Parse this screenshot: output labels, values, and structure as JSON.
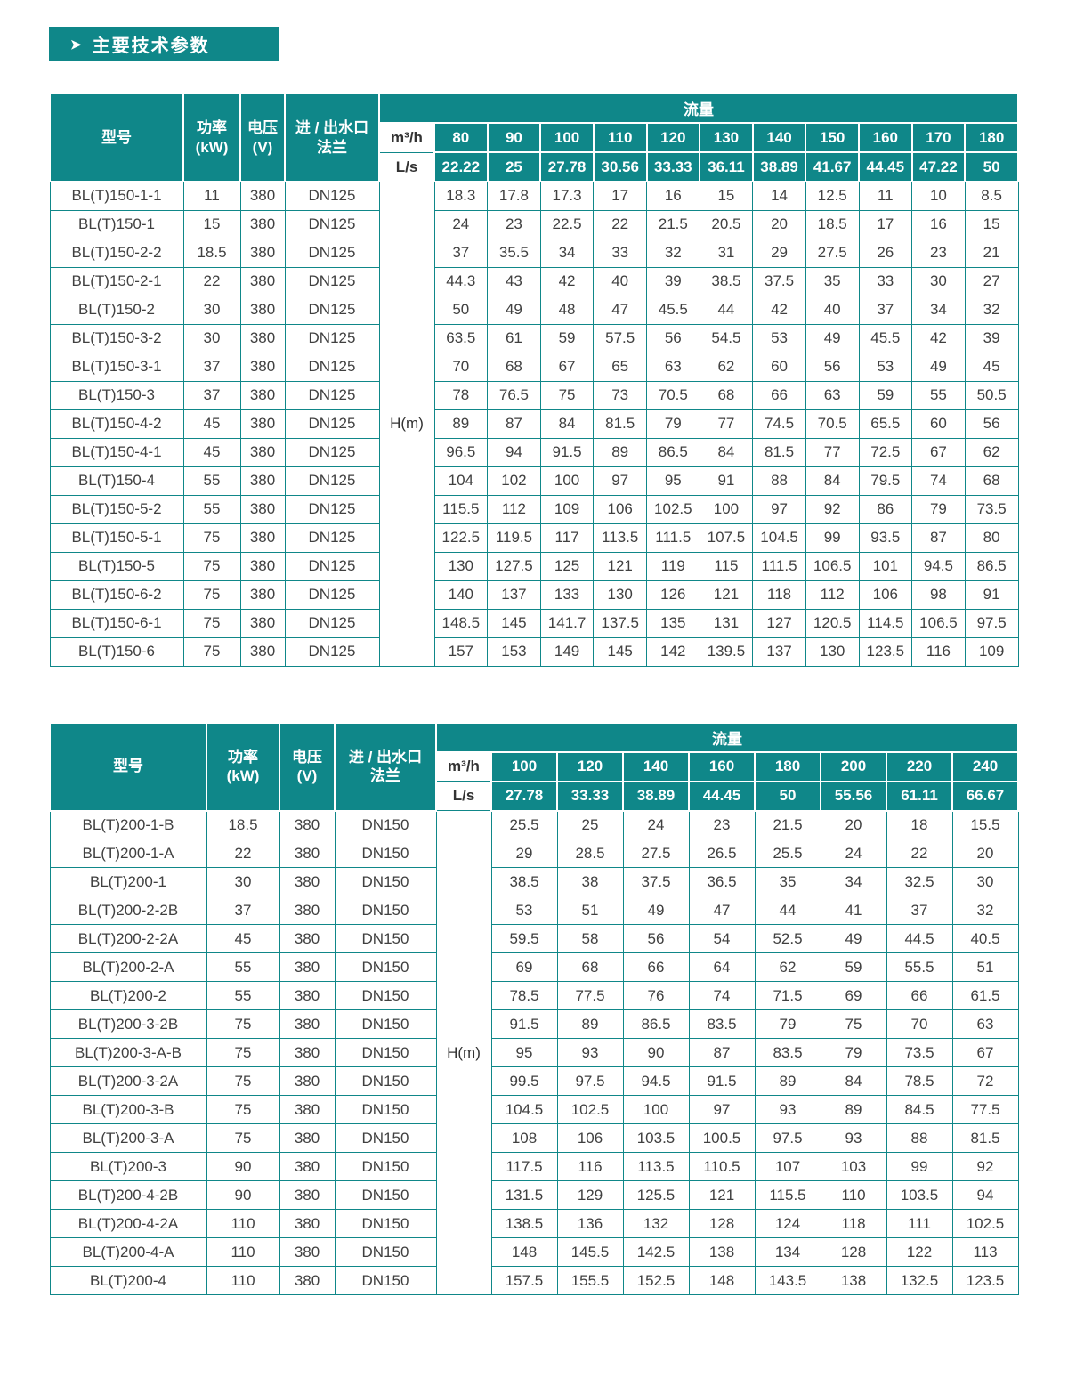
{
  "title": "主要技术参数",
  "title_arrow": "➤",
  "colors": {
    "teal": "#0f8789",
    "header_text": "#ffffff",
    "body_text": "#404040"
  },
  "tables": [
    {
      "series": "BL(T)150",
      "headers": {
        "model": "型号",
        "power": "功率\n(kW)",
        "voltage": "电压\n(V)",
        "flange": "进 / 出水口\n法兰",
        "flow": "流量",
        "unit_m3h": "m³/h",
        "unit_ls": "L/s",
        "head_label": "H(m)"
      },
      "flow_m3h": [
        "80",
        "90",
        "100",
        "110",
        "120",
        "130",
        "140",
        "150",
        "160",
        "170",
        "180"
      ],
      "flow_ls": [
        "22.22",
        "25",
        "27.78",
        "30.56",
        "33.33",
        "36.11",
        "38.89",
        "41.67",
        "44.45",
        "47.22",
        "50"
      ],
      "rows": [
        {
          "model": "BL(T)150-1-1",
          "power": "11",
          "voltage": "380",
          "flange": "DN125",
          "values": [
            "18.3",
            "17.8",
            "17.3",
            "17",
            "16",
            "15",
            "14",
            "12.5",
            "11",
            "10",
            "8.5"
          ]
        },
        {
          "model": "BL(T)150-1",
          "power": "15",
          "voltage": "380",
          "flange": "DN125",
          "values": [
            "24",
            "23",
            "22.5",
            "22",
            "21.5",
            "20.5",
            "20",
            "18.5",
            "17",
            "16",
            "15"
          ]
        },
        {
          "model": "BL(T)150-2-2",
          "power": "18.5",
          "voltage": "380",
          "flange": "DN125",
          "values": [
            "37",
            "35.5",
            "34",
            "33",
            "32",
            "31",
            "29",
            "27.5",
            "26",
            "23",
            "21"
          ]
        },
        {
          "model": "BL(T)150-2-1",
          "power": "22",
          "voltage": "380",
          "flange": "DN125",
          "values": [
            "44.3",
            "43",
            "42",
            "40",
            "39",
            "38.5",
            "37.5",
            "35",
            "33",
            "30",
            "27"
          ]
        },
        {
          "model": "BL(T)150-2",
          "power": "30",
          "voltage": "380",
          "flange": "DN125",
          "values": [
            "50",
            "49",
            "48",
            "47",
            "45.5",
            "44",
            "42",
            "40",
            "37",
            "34",
            "32"
          ]
        },
        {
          "model": "BL(T)150-3-2",
          "power": "30",
          "voltage": "380",
          "flange": "DN125",
          "values": [
            "63.5",
            "61",
            "59",
            "57.5",
            "56",
            "54.5",
            "53",
            "49",
            "45.5",
            "42",
            "39"
          ]
        },
        {
          "model": "BL(T)150-3-1",
          "power": "37",
          "voltage": "380",
          "flange": "DN125",
          "values": [
            "70",
            "68",
            "67",
            "65",
            "63",
            "62",
            "60",
            "56",
            "53",
            "49",
            "45"
          ]
        },
        {
          "model": "BL(T)150-3",
          "power": "37",
          "voltage": "380",
          "flange": "DN125",
          "values": [
            "78",
            "76.5",
            "75",
            "73",
            "70.5",
            "68",
            "66",
            "63",
            "59",
            "55",
            "50.5"
          ]
        },
        {
          "model": "BL(T)150-4-2",
          "power": "45",
          "voltage": "380",
          "flange": "DN125",
          "values": [
            "89",
            "87",
            "84",
            "81.5",
            "79",
            "77",
            "74.5",
            "70.5",
            "65.5",
            "60",
            "56"
          ]
        },
        {
          "model": "BL(T)150-4-1",
          "power": "45",
          "voltage": "380",
          "flange": "DN125",
          "values": [
            "96.5",
            "94",
            "91.5",
            "89",
            "86.5",
            "84",
            "81.5",
            "77",
            "72.5",
            "67",
            "62"
          ]
        },
        {
          "model": "BL(T)150-4",
          "power": "55",
          "voltage": "380",
          "flange": "DN125",
          "values": [
            "104",
            "102",
            "100",
            "97",
            "95",
            "91",
            "88",
            "84",
            "79.5",
            "74",
            "68"
          ]
        },
        {
          "model": "BL(T)150-5-2",
          "power": "55",
          "voltage": "380",
          "flange": "DN125",
          "values": [
            "115.5",
            "112",
            "109",
            "106",
            "102.5",
            "100",
            "97",
            "92",
            "86",
            "79",
            "73.5"
          ]
        },
        {
          "model": "BL(T)150-5-1",
          "power": "75",
          "voltage": "380",
          "flange": "DN125",
          "values": [
            "122.5",
            "119.5",
            "117",
            "113.5",
            "111.5",
            "107.5",
            "104.5",
            "99",
            "93.5",
            "87",
            "80"
          ]
        },
        {
          "model": "BL(T)150-5",
          "power": "75",
          "voltage": "380",
          "flange": "DN125",
          "values": [
            "130",
            "127.5",
            "125",
            "121",
            "119",
            "115",
            "111.5",
            "106.5",
            "101",
            "94.5",
            "86.5"
          ]
        },
        {
          "model": "BL(T)150-6-2",
          "power": "75",
          "voltage": "380",
          "flange": "DN125",
          "values": [
            "140",
            "137",
            "133",
            "130",
            "126",
            "121",
            "118",
            "112",
            "106",
            "98",
            "91"
          ]
        },
        {
          "model": "BL(T)150-6-1",
          "power": "75",
          "voltage": "380",
          "flange": "DN125",
          "values": [
            "148.5",
            "145",
            "141.7",
            "137.5",
            "135",
            "131",
            "127",
            "120.5",
            "114.5",
            "106.5",
            "97.5"
          ]
        },
        {
          "model": "BL(T)150-6",
          "power": "75",
          "voltage": "380",
          "flange": "DN125",
          "values": [
            "157",
            "153",
            "149",
            "145",
            "142",
            "139.5",
            "137",
            "130",
            "123.5",
            "116",
            "109"
          ]
        }
      ]
    },
    {
      "series": "BL(T)200",
      "headers": {
        "model": "型号",
        "power": "功率\n(kW)",
        "voltage": "电压\n(V)",
        "flange": "进 / 出水口\n法兰",
        "flow": "流量",
        "unit_m3h": "m³/h",
        "unit_ls": "L/s",
        "head_label": "H(m)"
      },
      "flow_m3h": [
        "100",
        "120",
        "140",
        "160",
        "180",
        "200",
        "220",
        "240"
      ],
      "flow_ls": [
        "27.78",
        "33.33",
        "38.89",
        "44.45",
        "50",
        "55.56",
        "61.11",
        "66.67"
      ],
      "rows": [
        {
          "model": "BL(T)200-1-B",
          "power": "18.5",
          "voltage": "380",
          "flange": "DN150",
          "values": [
            "25.5",
            "25",
            "24",
            "23",
            "21.5",
            "20",
            "18",
            "15.5"
          ]
        },
        {
          "model": "BL(T)200-1-A",
          "power": "22",
          "voltage": "380",
          "flange": "DN150",
          "values": [
            "29",
            "28.5",
            "27.5",
            "26.5",
            "25.5",
            "24",
            "22",
            "20"
          ]
        },
        {
          "model": "BL(T)200-1",
          "power": "30",
          "voltage": "380",
          "flange": "DN150",
          "values": [
            "38.5",
            "38",
            "37.5",
            "36.5",
            "35",
            "34",
            "32.5",
            "30"
          ]
        },
        {
          "model": "BL(T)200-2-2B",
          "power": "37",
          "voltage": "380",
          "flange": "DN150",
          "values": [
            "53",
            "51",
            "49",
            "47",
            "44",
            "41",
            "37",
            "32"
          ]
        },
        {
          "model": "BL(T)200-2-2A",
          "power": "45",
          "voltage": "380",
          "flange": "DN150",
          "values": [
            "59.5",
            "58",
            "56",
            "54",
            "52.5",
            "49",
            "44.5",
            "40.5"
          ]
        },
        {
          "model": "BL(T)200-2-A",
          "power": "55",
          "voltage": "380",
          "flange": "DN150",
          "values": [
            "69",
            "68",
            "66",
            "64",
            "62",
            "59",
            "55.5",
            "51"
          ]
        },
        {
          "model": "BL(T)200-2",
          "power": "55",
          "voltage": "380",
          "flange": "DN150",
          "values": [
            "78.5",
            "77.5",
            "76",
            "74",
            "71.5",
            "69",
            "66",
            "61.5"
          ]
        },
        {
          "model": "BL(T)200-3-2B",
          "power": "75",
          "voltage": "380",
          "flange": "DN150",
          "values": [
            "91.5",
            "89",
            "86.5",
            "83.5",
            "79",
            "75",
            "70",
            "63"
          ]
        },
        {
          "model": "BL(T)200-3-A-B",
          "power": "75",
          "voltage": "380",
          "flange": "DN150",
          "values": [
            "95",
            "93",
            "90",
            "87",
            "83.5",
            "79",
            "73.5",
            "67"
          ]
        },
        {
          "model": "BL(T)200-3-2A",
          "power": "75",
          "voltage": "380",
          "flange": "DN150",
          "values": [
            "99.5",
            "97.5",
            "94.5",
            "91.5",
            "89",
            "84",
            "78.5",
            "72"
          ]
        },
        {
          "model": "BL(T)200-3-B",
          "power": "75",
          "voltage": "380",
          "flange": "DN150",
          "values": [
            "104.5",
            "102.5",
            "100",
            "97",
            "93",
            "89",
            "84.5",
            "77.5"
          ]
        },
        {
          "model": "BL(T)200-3-A",
          "power": "75",
          "voltage": "380",
          "flange": "DN150",
          "values": [
            "108",
            "106",
            "103.5",
            "100.5",
            "97.5",
            "93",
            "88",
            "81.5"
          ]
        },
        {
          "model": "BL(T)200-3",
          "power": "90",
          "voltage": "380",
          "flange": "DN150",
          "values": [
            "117.5",
            "116",
            "113.5",
            "110.5",
            "107",
            "103",
            "99",
            "92"
          ]
        },
        {
          "model": "BL(T)200-4-2B",
          "power": "90",
          "voltage": "380",
          "flange": "DN150",
          "values": [
            "131.5",
            "129",
            "125.5",
            "121",
            "115.5",
            "110",
            "103.5",
            "94"
          ]
        },
        {
          "model": "BL(T)200-4-2A",
          "power": "110",
          "voltage": "380",
          "flange": "DN150",
          "values": [
            "138.5",
            "136",
            "132",
            "128",
            "124",
            "118",
            "111",
            "102.5"
          ]
        },
        {
          "model": "BL(T)200-4-A",
          "power": "110",
          "voltage": "380",
          "flange": "DN150",
          "values": [
            "148",
            "145.5",
            "142.5",
            "138",
            "134",
            "128",
            "122",
            "113"
          ]
        },
        {
          "model": "BL(T)200-4",
          "power": "110",
          "voltage": "380",
          "flange": "DN150",
          "values": [
            "157.5",
            "155.5",
            "152.5",
            "148",
            "143.5",
            "138",
            "132.5",
            "123.5"
          ]
        }
      ]
    }
  ]
}
